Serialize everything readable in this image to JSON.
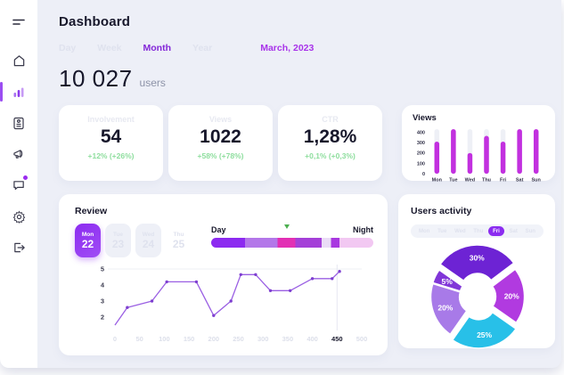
{
  "colors": {
    "accent_purple": "#8b2cf0",
    "period_purple": "#a833ea",
    "bar_magenta": "#c230df",
    "positive_green": "#8ede9e",
    "line_purple": "#9a5fe3",
    "marker_green": "#4caf50",
    "background": "#edeff7"
  },
  "sidebar": {
    "icons": [
      "menu-icon",
      "home-icon",
      "bar-chart-icon",
      "report-icon",
      "megaphone-icon",
      "chat-icon",
      "settings-icon",
      "logout-icon"
    ],
    "active_icon": "bar-chart-icon",
    "chat_badge": true
  },
  "header": {
    "title": "Dashboard",
    "tabs": [
      "Day",
      "Week",
      "Month",
      "Year"
    ],
    "active_tab": "Month",
    "period": "March, 2023"
  },
  "stats": {
    "users_value": "10 027",
    "users_label": "users"
  },
  "stat_cards": [
    {
      "label": "Involvement",
      "value": "54",
      "delta": "+12% (+26%)"
    },
    {
      "label": "Views",
      "value": "1022",
      "delta": "+58% (+78%)"
    },
    {
      "label": "CTR",
      "value": "1,28%",
      "delta": "+0,1% (+0,3%)"
    }
  ],
  "review": {
    "title": "Review",
    "dates": [
      {
        "day": "Mon",
        "num": "22",
        "state": "active"
      },
      {
        "day": "Tue",
        "num": "23",
        "state": "muted"
      },
      {
        "day": "Wed",
        "num": "24",
        "state": "muted"
      },
      {
        "day": "Thu",
        "num": "25",
        "state": "plain"
      }
    ],
    "range": {
      "start_label": "Day",
      "end_label": "Night",
      "marker_pct": 47,
      "marker_color": "#4caf50",
      "segments": [
        {
          "color": "#8c2af0",
          "pct": 21
        },
        {
          "color": "#b377e9",
          "pct": 20
        },
        {
          "color": "#e22fb4",
          "pct": 11
        },
        {
          "color": "#a43fd8",
          "pct": 16
        },
        {
          "color": "#eadcf6",
          "pct": 6
        },
        {
          "color": "#a838e0",
          "pct": 5
        },
        {
          "color": "#f2c8f2",
          "pct": 21
        }
      ]
    }
  },
  "activity": {
    "title": "Users activity",
    "days": [
      "Mon",
      "Tue",
      "Wed",
      "Thu",
      "Fri",
      "Sat",
      "Sun"
    ],
    "active_day": "Fri"
  },
  "chart_data": [
    {
      "id": "views_bar",
      "type": "bar",
      "title": "Views",
      "categories": [
        "Mon",
        "Tue",
        "Wed",
        "Thu",
        "Fri",
        "Sat",
        "Sun"
      ],
      "values": [
        310,
        430,
        200,
        365,
        310,
        430,
        430
      ],
      "yticks": [
        400,
        300,
        200,
        100,
        0
      ],
      "ylim": [
        0,
        430
      ],
      "bar_color": "#c230df",
      "track_color": "#eef0f6",
      "grid": false
    },
    {
      "id": "review_line",
      "type": "line",
      "title": "Review",
      "x": [
        0,
        25,
        75,
        105,
        165,
        200,
        235,
        255,
        285,
        315,
        355,
        400,
        440,
        455
      ],
      "y": [
        1.5,
        2.6,
        3.0,
        4.2,
        4.2,
        2.1,
        3.0,
        4.65,
        4.65,
        3.65,
        3.65,
        4.4,
        4.4,
        4.85
      ],
      "xticks": [
        0,
        50,
        100,
        150,
        200,
        250,
        300,
        350,
        400,
        450,
        500
      ],
      "highlight_xtick": 450,
      "yticks": [
        5,
        4,
        3,
        2
      ],
      "xlim": [
        0,
        500
      ],
      "ylim": [
        1.1,
        5.35
      ],
      "line_color": "#9a5fe3",
      "dot_color": "#7e3fd0",
      "grid": "top gridline at y=5, vertical cursor line at x=450"
    },
    {
      "id": "activity_donut",
      "type": "pie",
      "title": "Users activity",
      "start_angle": -55,
      "slices": [
        {
          "label": "30%",
          "value": 30,
          "color": "#6d23d4",
          "explode": true
        },
        {
          "label": "20%",
          "value": 20,
          "color": "#b13ae0",
          "explode": false
        },
        {
          "label": "25%",
          "value": 25,
          "color": "#28c0e8",
          "explode": true
        },
        {
          "label": "20%",
          "value": 20,
          "color": "#a87ae8",
          "explode": false
        },
        {
          "label": "5%",
          "value": 5,
          "color": "#8136d8",
          "explode": false
        }
      ]
    }
  ]
}
